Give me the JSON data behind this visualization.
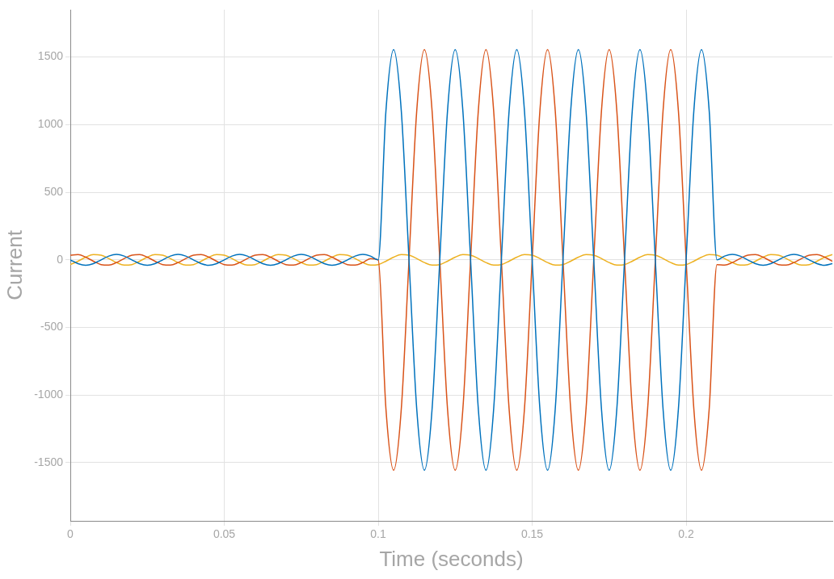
{
  "chart_data": {
    "type": "line",
    "xlabel": "Time (seconds)",
    "ylabel": "Current",
    "x": [
      0,
      0.0025,
      0.005,
      0.0075,
      0.01,
      0.0125,
      0.015,
      0.0175,
      0.02,
      0.0225,
      0.025,
      0.0275,
      0.03,
      0.0325,
      0.035,
      0.0375,
      0.04,
      0.0425,
      0.045,
      0.0475,
      0.05,
      0.0525,
      0.055,
      0.0575,
      0.06,
      0.0625,
      0.065,
      0.0675,
      0.07,
      0.0725,
      0.075,
      0.0775,
      0.08,
      0.0825,
      0.085,
      0.0875,
      0.09,
      0.0925,
      0.095,
      0.0975,
      0.1,
      0.1025,
      0.105,
      0.1075,
      0.11,
      0.1125,
      0.115,
      0.1175,
      0.12,
      0.1225,
      0.125,
      0.1275,
      0.13,
      0.1325,
      0.135,
      0.1375,
      0.14,
      0.1425,
      0.145,
      0.1475,
      0.15,
      0.1525,
      0.155,
      0.1575,
      0.16,
      0.1625,
      0.165,
      0.1675,
      0.17,
      0.1725,
      0.175,
      0.1775,
      0.18,
      0.1825,
      0.185,
      0.1875,
      0.19,
      0.1925,
      0.195,
      0.1975,
      0.2,
      0.2025,
      0.205,
      0.2075,
      0.21,
      0.2125,
      0.215,
      0.2175,
      0.22,
      0.2225,
      0.225,
      0.2275,
      0.23,
      0.2325,
      0.235,
      0.2375,
      0.24,
      0.2425,
      0.245,
      0.2475
    ],
    "series": [
      {
        "color": "#0072bd",
        "values": [
          0,
          -28,
          -40,
          -28,
          0,
          28,
          40,
          28,
          0,
          -28,
          -40,
          -28,
          0,
          28,
          40,
          28,
          0,
          -28,
          -40,
          -28,
          0,
          28,
          40,
          28,
          0,
          -28,
          -40,
          -28,
          0,
          28,
          40,
          28,
          0,
          -28,
          -40,
          -28,
          0,
          28,
          40,
          28,
          0,
          1100,
          1555,
          1100,
          0,
          -1100,
          -1555,
          -1100,
          0,
          1100,
          1555,
          1100,
          0,
          -1100,
          -1555,
          -1100,
          0,
          1100,
          1555,
          1100,
          0,
          -1100,
          -1555,
          -1100,
          0,
          1100,
          1555,
          1100,
          0,
          -1100,
          -1555,
          -1100,
          0,
          1100,
          1555,
          1100,
          0,
          -1100,
          -1555,
          -1100,
          0,
          1100,
          1555,
          1100,
          0,
          28,
          40,
          28,
          0,
          -28,
          -40,
          -28,
          0,
          28,
          40,
          28,
          0,
          -28,
          -40,
          -28
        ]
      },
      {
        "color": "#d95319",
        "values": [
          35,
          39,
          20,
          -10,
          -35,
          -39,
          -20,
          10,
          35,
          39,
          20,
          -10,
          -35,
          -39,
          -20,
          10,
          35,
          39,
          20,
          -10,
          -35,
          -39,
          -20,
          10,
          35,
          39,
          20,
          -10,
          -35,
          -39,
          -20,
          10,
          35,
          39,
          20,
          -10,
          -35,
          -39,
          -20,
          10,
          0,
          -1100,
          -1555,
          -1100,
          0,
          1100,
          1555,
          1100,
          0,
          -1100,
          -1555,
          -1100,
          0,
          1100,
          1555,
          1100,
          0,
          -1100,
          -1555,
          -1100,
          0,
          1100,
          1555,
          1100,
          0,
          -1100,
          -1555,
          -1100,
          0,
          1100,
          1555,
          1100,
          0,
          -1100,
          -1555,
          -1100,
          0,
          1100,
          1555,
          1100,
          0,
          -1100,
          -1555,
          -1100,
          -35,
          -39,
          -20,
          10,
          35,
          39,
          20,
          -10,
          -35,
          -39,
          -20,
          10,
          35,
          39,
          20,
          -10
        ]
      },
      {
        "color": "#edb120",
        "values": [
          -35,
          -10,
          20,
          39,
          35,
          10,
          -20,
          -39,
          -35,
          -10,
          20,
          39,
          35,
          10,
          -20,
          -39,
          -35,
          -10,
          20,
          39,
          35,
          10,
          -20,
          -39,
          -35,
          -10,
          20,
          39,
          35,
          10,
          -20,
          -39,
          -35,
          -10,
          20,
          39,
          35,
          10,
          -20,
          -39,
          -35,
          -10,
          20,
          39,
          35,
          10,
          -20,
          -39,
          -35,
          -10,
          20,
          39,
          35,
          10,
          -20,
          -39,
          -35,
          -10,
          20,
          39,
          35,
          10,
          -20,
          -39,
          -35,
          -10,
          20,
          39,
          35,
          10,
          -20,
          -39,
          -35,
          -10,
          20,
          39,
          35,
          10,
          -20,
          -39,
          -35,
          -10,
          20,
          39,
          35,
          10,
          -20,
          -39,
          -35,
          -10,
          20,
          39,
          35,
          10,
          -20,
          -39,
          -35,
          -10,
          20,
          39
        ]
      }
    ],
    "xlim": [
      0,
      0.2475
    ],
    "xticks": [
      0,
      0.05,
      0.1,
      0.15,
      0.2
    ],
    "ylim": [
      -1930,
      1850
    ],
    "yticks": [
      -1500,
      -1000,
      -500,
      0,
      500,
      1000,
      1500
    ],
    "grid": true,
    "legend": false
  }
}
